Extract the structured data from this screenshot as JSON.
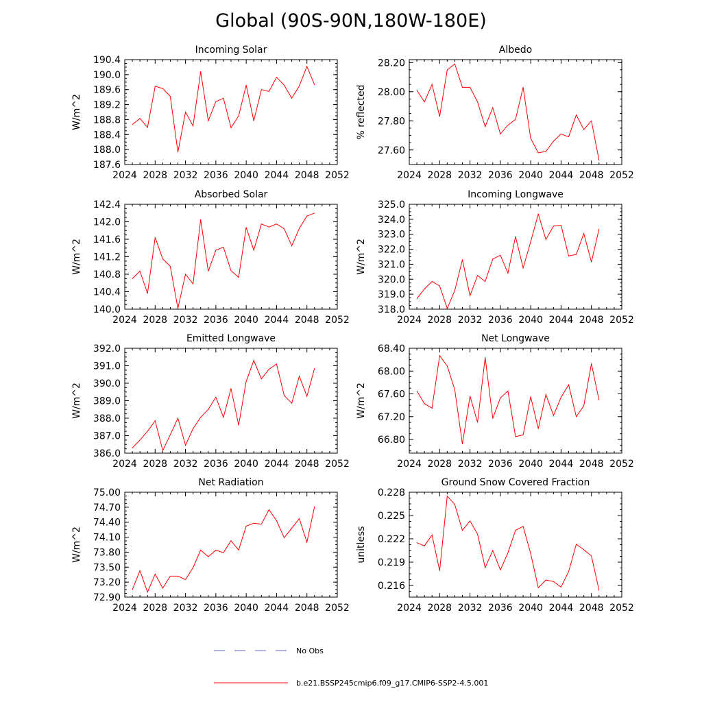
{
  "title": "Global (90S-90N,180W-180E)",
  "colors": {
    "model_line": "#ff0000",
    "obs_line": "#6666cc",
    "axis": "#000000"
  },
  "legend": {
    "obs_label": "No Obs",
    "model_label": "b.e21.BSSP245cmip6.f09_g17.CMIP6-SSP2-4.5.001"
  },
  "chart_data": [
    {
      "type": "line",
      "title": "Incoming Solar",
      "ylabel": "W/m^2",
      "xlim": [
        2024,
        2052
      ],
      "xticks": [
        2024,
        2028,
        2032,
        2036,
        2040,
        2044,
        2048,
        2052
      ],
      "ylim": [
        187.6,
        190.4
      ],
      "yticks": [
        187.6,
        188.0,
        188.4,
        188.8,
        189.2,
        189.6,
        190.0,
        190.4
      ],
      "ytick_labels": [
        "187.6",
        "188.0",
        "188.4",
        "188.8",
        "189.2",
        "189.6",
        "190.0",
        "190.4"
      ],
      "x": [
        2025,
        2026,
        2027,
        2028,
        2029,
        2030,
        2031,
        2032,
        2033,
        2034,
        2035,
        2036,
        2037,
        2038,
        2039,
        2040,
        2041,
        2042,
        2043,
        2044,
        2045,
        2046,
        2047,
        2048,
        2049
      ],
      "series": [
        {
          "name": "b.e21.BSSP245cmip6.f09_g17.CMIP6-SSP2-4.5.001",
          "values": [
            188.67,
            188.83,
            188.59,
            189.69,
            189.63,
            189.42,
            187.93,
            189.0,
            188.63,
            190.08,
            188.77,
            189.28,
            189.37,
            188.58,
            188.9,
            189.72,
            188.77,
            189.6,
            189.55,
            189.93,
            189.72,
            189.37,
            189.7,
            190.22,
            189.73
          ]
        }
      ]
    },
    {
      "type": "line",
      "title": "Albedo",
      "ylabel": "% reflected",
      "xlim": [
        2024,
        2052
      ],
      "xticks": [
        2024,
        2028,
        2032,
        2036,
        2040,
        2044,
        2048,
        2052
      ],
      "ylim": [
        27.5,
        28.22
      ],
      "yticks": [
        27.6,
        27.8,
        28.0,
        28.2
      ],
      "ytick_labels": [
        "27.60",
        "27.80",
        "28.00",
        "28.20"
      ],
      "x": [
        2025,
        2026,
        2027,
        2028,
        2029,
        2030,
        2031,
        2032,
        2033,
        2034,
        2035,
        2036,
        2037,
        2038,
        2039,
        2040,
        2041,
        2042,
        2043,
        2044,
        2045,
        2046,
        2047,
        2048,
        2049
      ],
      "series": [
        {
          "name": "b.e21.BSSP245cmip6.f09_g17.CMIP6-SSP2-4.5.001",
          "values": [
            28.01,
            27.93,
            28.05,
            27.83,
            28.15,
            28.19,
            28.03,
            28.03,
            27.93,
            27.76,
            27.89,
            27.71,
            27.77,
            27.81,
            28.03,
            27.68,
            27.58,
            27.59,
            27.66,
            27.71,
            27.69,
            27.84,
            27.74,
            27.8,
            27.53
          ]
        }
      ]
    },
    {
      "type": "line",
      "title": "Absorbed Solar",
      "ylabel": "W/m^2",
      "xlim": [
        2024,
        2052
      ],
      "xticks": [
        2024,
        2028,
        2032,
        2036,
        2040,
        2044,
        2048,
        2052
      ],
      "ylim": [
        140.0,
        142.4
      ],
      "yticks": [
        140.0,
        140.4,
        140.8,
        141.2,
        141.6,
        142.0,
        142.4
      ],
      "ytick_labels": [
        "140.0",
        "140.4",
        "140.8",
        "141.2",
        "141.6",
        "142.0",
        "142.4"
      ],
      "x": [
        2025,
        2026,
        2027,
        2028,
        2029,
        2030,
        2031,
        2032,
        2033,
        2034,
        2035,
        2036,
        2037,
        2038,
        2039,
        2040,
        2041,
        2042,
        2043,
        2044,
        2045,
        2046,
        2047,
        2048,
        2049
      ],
      "series": [
        {
          "name": "b.e21.BSSP245cmip6.f09_g17.CMIP6-SSP2-4.5.001",
          "values": [
            140.7,
            140.87,
            140.36,
            141.64,
            141.15,
            140.98,
            140.02,
            140.8,
            140.58,
            142.05,
            140.87,
            141.35,
            141.42,
            140.88,
            140.73,
            141.87,
            141.35,
            141.95,
            141.88,
            141.95,
            141.84,
            141.45,
            141.85,
            142.13,
            142.2
          ]
        }
      ]
    },
    {
      "type": "line",
      "title": "Incoming Longwave",
      "ylabel": "W/m^2",
      "xlim": [
        2024,
        2052
      ],
      "xticks": [
        2024,
        2028,
        2032,
        2036,
        2040,
        2044,
        2048,
        2052
      ],
      "ylim": [
        318.0,
        325.0
      ],
      "yticks": [
        318,
        319,
        320,
        321,
        322,
        323,
        324,
        325
      ],
      "ytick_labels": [
        "318.0",
        "319.0",
        "320.0",
        "321.0",
        "322.0",
        "323.0",
        "324.0",
        "325.0"
      ],
      "x": [
        2025,
        2026,
        2027,
        2028,
        2029,
        2030,
        2031,
        2032,
        2033,
        2034,
        2035,
        2036,
        2037,
        2038,
        2039,
        2040,
        2041,
        2042,
        2043,
        2044,
        2045,
        2046,
        2047,
        2048,
        2049
      ],
      "series": [
        {
          "name": "b.e21.BSSP245cmip6.f09_g17.CMIP6-SSP2-4.5.001",
          "values": [
            318.7,
            319.35,
            319.85,
            319.55,
            318.05,
            319.25,
            321.3,
            318.9,
            320.25,
            319.85,
            321.35,
            321.6,
            320.4,
            322.85,
            320.75,
            322.5,
            324.35,
            322.65,
            323.55,
            323.6,
            321.55,
            321.65,
            323.05,
            321.15,
            323.35
          ]
        }
      ]
    },
    {
      "type": "line",
      "title": "Emitted Longwave",
      "ylabel": "W/m^2",
      "xlim": [
        2024,
        2052
      ],
      "xticks": [
        2024,
        2028,
        2032,
        2036,
        2040,
        2044,
        2048,
        2052
      ],
      "ylim": [
        386.0,
        392.0
      ],
      "yticks": [
        386,
        387,
        388,
        389,
        390,
        391,
        392
      ],
      "ytick_labels": [
        "386.0",
        "387.0",
        "388.0",
        "389.0",
        "390.0",
        "391.0",
        "392.0"
      ],
      "x": [
        2025,
        2026,
        2027,
        2028,
        2029,
        2030,
        2031,
        2032,
        2033,
        2034,
        2035,
        2036,
        2037,
        2038,
        2039,
        2040,
        2041,
        2042,
        2043,
        2044,
        2045,
        2046,
        2047,
        2048,
        2049
      ],
      "series": [
        {
          "name": "b.e21.BSSP245cmip6.f09_g17.CMIP6-SSP2-4.5.001",
          "values": [
            386.3,
            386.75,
            387.25,
            387.85,
            386.15,
            387.05,
            388.0,
            386.45,
            387.4,
            388.05,
            388.5,
            389.2,
            388.05,
            389.7,
            387.6,
            390.1,
            391.3,
            390.25,
            390.8,
            391.1,
            389.3,
            388.85,
            390.4,
            389.25,
            390.85
          ]
        }
      ]
    },
    {
      "type": "line",
      "title": "Net Longwave",
      "ylabel": "W/m^2",
      "xlim": [
        2024,
        2052
      ],
      "xticks": [
        2024,
        2028,
        2032,
        2036,
        2040,
        2044,
        2048,
        2052
      ],
      "ylim": [
        66.56,
        68.4
      ],
      "yticks": [
        66.8,
        67.2,
        67.6,
        68.0,
        68.4
      ],
      "ytick_labels": [
        "66.80",
        "67.20",
        "67.60",
        "68.00",
        "68.40"
      ],
      "x": [
        2025,
        2026,
        2027,
        2028,
        2029,
        2030,
        2031,
        2032,
        2033,
        2034,
        2035,
        2036,
        2037,
        2038,
        2039,
        2040,
        2041,
        2042,
        2043,
        2044,
        2045,
        2046,
        2047,
        2048,
        2049
      ],
      "series": [
        {
          "name": "b.e21.BSSP245cmip6.f09_g17.CMIP6-SSP2-4.5.001",
          "values": [
            67.65,
            67.43,
            67.35,
            68.27,
            68.09,
            67.67,
            66.72,
            67.56,
            67.1,
            68.24,
            67.17,
            67.53,
            67.65,
            66.85,
            66.88,
            67.55,
            66.99,
            67.59,
            67.22,
            67.54,
            67.76,
            67.2,
            67.39,
            68.13,
            67.49
          ]
        }
      ]
    },
    {
      "type": "line",
      "title": "Net Radiation",
      "ylabel": "W/m^2",
      "xlim": [
        2024,
        2052
      ],
      "xticks": [
        2024,
        2028,
        2032,
        2036,
        2040,
        2044,
        2048,
        2052
      ],
      "ylim": [
        72.9,
        75.0
      ],
      "yticks": [
        72.9,
        73.2,
        73.5,
        73.8,
        74.1,
        74.4,
        74.7,
        75.0
      ],
      "ytick_labels": [
        "72.90",
        "73.20",
        "73.50",
        "73.80",
        "74.10",
        "74.40",
        "74.70",
        "75.00"
      ],
      "x": [
        2025,
        2026,
        2027,
        2028,
        2029,
        2030,
        2031,
        2032,
        2033,
        2034,
        2035,
        2036,
        2037,
        2038,
        2039,
        2040,
        2041,
        2042,
        2043,
        2044,
        2045,
        2046,
        2047,
        2048,
        2049
      ],
      "series": [
        {
          "name": "b.e21.BSSP245cmip6.f09_g17.CMIP6-SSP2-4.5.001",
          "values": [
            73.05,
            73.43,
            73.0,
            73.36,
            73.08,
            73.32,
            73.32,
            73.25,
            73.49,
            73.84,
            73.71,
            73.84,
            73.79,
            74.03,
            73.84,
            74.32,
            74.38,
            74.36,
            74.65,
            74.43,
            74.09,
            74.28,
            74.47,
            74.0,
            74.71
          ]
        }
      ]
    },
    {
      "type": "line",
      "title": "Ground Snow Covered Fraction",
      "ylabel": "unitless",
      "xlim": [
        2024,
        2052
      ],
      "xticks": [
        2024,
        2028,
        2032,
        2036,
        2040,
        2044,
        2048,
        2052
      ],
      "ylim": [
        0.2145,
        0.228
      ],
      "yticks": [
        0.216,
        0.219,
        0.222,
        0.225,
        0.228
      ],
      "ytick_labels": [
        "0.216",
        "0.219",
        "0.222",
        "0.225",
        "0.228"
      ],
      "x": [
        2025,
        2026,
        2027,
        2028,
        2029,
        2030,
        2031,
        2032,
        2033,
        2034,
        2035,
        2036,
        2037,
        2038,
        2039,
        2040,
        2041,
        2042,
        2043,
        2044,
        2045,
        2046,
        2047,
        2048,
        2049
      ],
      "series": [
        {
          "name": "b.e21.BSSP245cmip6.f09_g17.CMIP6-SSP2-4.5.001",
          "values": [
            0.2215,
            0.2211,
            0.2225,
            0.2179,
            0.2275,
            0.2264,
            0.2231,
            0.2243,
            0.2226,
            0.2183,
            0.2205,
            0.218,
            0.2202,
            0.2231,
            0.2236,
            0.2201,
            0.2157,
            0.2167,
            0.2165,
            0.2158,
            0.2178,
            0.2213,
            0.2206,
            0.2198,
            0.2154
          ]
        }
      ]
    }
  ]
}
